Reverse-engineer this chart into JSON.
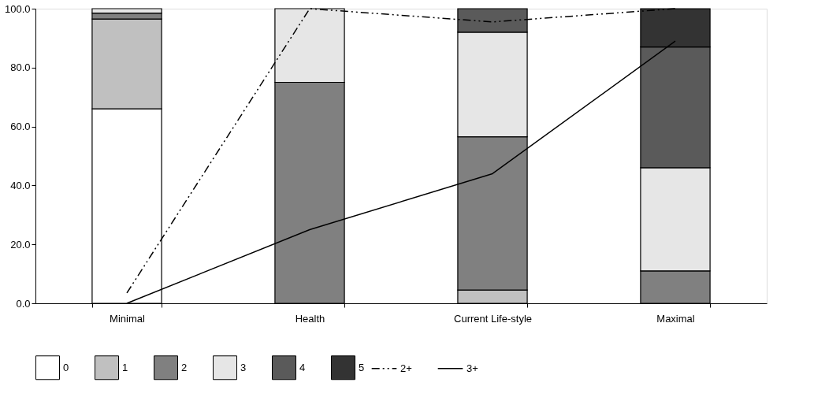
{
  "chart_data": {
    "type": "bar",
    "stacked": true,
    "categories": [
      "Minimal",
      "Health",
      "Current Life-style",
      "Maximal"
    ],
    "series": [
      {
        "name": "0",
        "color": "#ffffff",
        "values": [
          66,
          null,
          null,
          null
        ]
      },
      {
        "name": "1",
        "color": "#c0c0c0",
        "values": [
          30.5,
          null,
          4.5,
          null
        ]
      },
      {
        "name": "2",
        "color": "#808080",
        "values": [
          2,
          75,
          52,
          11
        ]
      },
      {
        "name": "3",
        "color": "#e6e6e6",
        "values": [
          1.5,
          25,
          35.5,
          35
        ]
      },
      {
        "name": "4",
        "color": "#5a5a5a",
        "values": [
          null,
          null,
          8,
          41
        ]
      },
      {
        "name": "5",
        "color": "#333333",
        "values": [
          null,
          null,
          null,
          13
        ]
      },
      {
        "name": "2+",
        "type": "line",
        "color": "#000000",
        "line_style": "dashed",
        "values": [
          3.5,
          100,
          95.5,
          100
        ]
      },
      {
        "name": "3+",
        "type": "line",
        "color": "#000000",
        "line_style": "solid",
        "values": [
          0,
          25,
          44,
          89
        ]
      }
    ],
    "ylim": [
      0,
      100
    ],
    "yticks": [
      {
        "value": 0,
        "label": "0.0"
      },
      {
        "value": 20,
        "label": "20.0"
      },
      {
        "value": 40,
        "label": "40.0"
      },
      {
        "value": 60,
        "label": "60.0"
      },
      {
        "value": 80,
        "label": "80.0"
      },
      {
        "value": 100,
        "label": "100.0"
      }
    ],
    "grid": false,
    "legend": "bottom"
  }
}
